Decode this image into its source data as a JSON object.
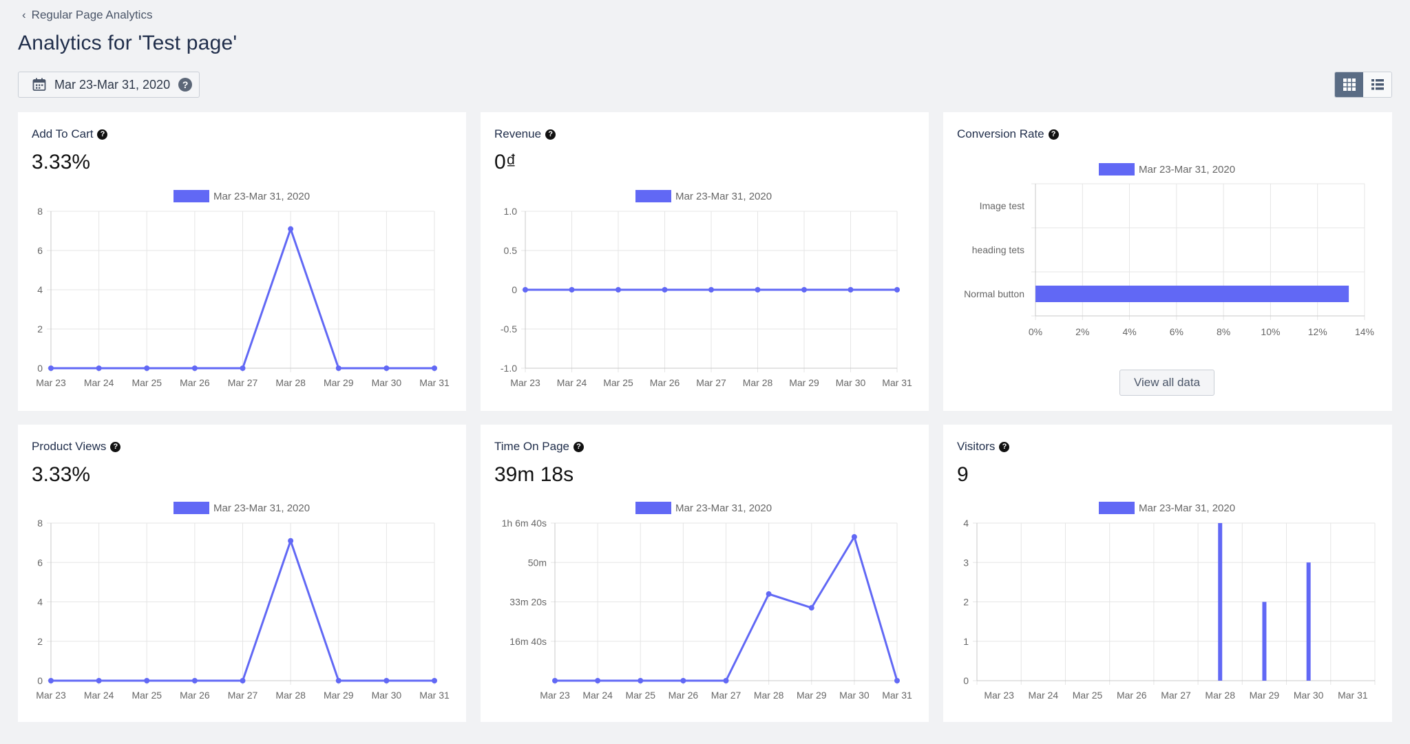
{
  "breadcrumb": {
    "label": "Regular Page Analytics"
  },
  "page": {
    "title": "Analytics for 'Test page'"
  },
  "date_range": {
    "label": "Mar 23-Mar 31, 2020",
    "help": "?"
  },
  "view_toggle": {
    "active": "grid"
  },
  "colors": {
    "series": "#6168f5",
    "background": "#f1f2f4"
  },
  "legend_label": "Mar 23-Mar 31, 2020",
  "help_glyph": "?",
  "cards": {
    "add_to_cart": {
      "title": "Add To Cart",
      "value": "3.33%"
    },
    "revenue": {
      "title": "Revenue",
      "value": "0₫"
    },
    "conversion_rate": {
      "title": "Conversion Rate",
      "view_all": "View all data"
    },
    "product_views": {
      "title": "Product Views",
      "value": "3.33%"
    },
    "time_on_page": {
      "title": "Time On Page",
      "value": "39m 18s"
    },
    "visitors": {
      "title": "Visitors",
      "value": "9"
    }
  },
  "chart_data": [
    {
      "id": "add_to_cart",
      "type": "line",
      "categories": [
        "Mar 23",
        "Mar 24",
        "Mar 25",
        "Mar 26",
        "Mar 27",
        "Mar 28",
        "Mar 29",
        "Mar 30",
        "Mar 31"
      ],
      "series": [
        {
          "name": "Mar 23-Mar 31, 2020",
          "values": [
            0,
            0,
            0,
            0,
            0,
            7.1,
            0,
            0,
            0
          ]
        }
      ],
      "ylim": [
        0,
        8
      ],
      "yticks": [
        0,
        2,
        4,
        6,
        8
      ],
      "ytick_labels": [
        "0",
        "2",
        "4",
        "6",
        "8"
      ],
      "legend": "top-center",
      "grid": true
    },
    {
      "id": "revenue",
      "type": "line",
      "categories": [
        "Mar 23",
        "Mar 24",
        "Mar 25",
        "Mar 26",
        "Mar 27",
        "Mar 28",
        "Mar 29",
        "Mar 30",
        "Mar 31"
      ],
      "series": [
        {
          "name": "Mar 23-Mar 31, 2020",
          "values": [
            0,
            0,
            0,
            0,
            0,
            0,
            0,
            0,
            0
          ]
        }
      ],
      "ylim": [
        -1,
        1
      ],
      "yticks": [
        -1,
        -0.5,
        0,
        0.5,
        1
      ],
      "ytick_labels": [
        "-1.0",
        "-0.5",
        "0",
        "0.5",
        "1.0"
      ],
      "legend": "top-center",
      "grid": true
    },
    {
      "id": "conversion_rate",
      "type": "bar",
      "orientation": "horizontal",
      "categories": [
        "Image test",
        "heading tets",
        "Normal button"
      ],
      "series": [
        {
          "name": "Mar 23-Mar 31, 2020",
          "values": [
            0,
            0,
            13.33
          ]
        }
      ],
      "xlim": [
        0,
        14
      ],
      "xticks": [
        0,
        2,
        4,
        6,
        8,
        10,
        12,
        14
      ],
      "xtick_labels": [
        "0%",
        "2%",
        "4%",
        "6%",
        "8%",
        "10%",
        "12%",
        "14%"
      ],
      "legend": "top-center",
      "grid": true
    },
    {
      "id": "product_views",
      "type": "line",
      "categories": [
        "Mar 23",
        "Mar 24",
        "Mar 25",
        "Mar 26",
        "Mar 27",
        "Mar 28",
        "Mar 29",
        "Mar 30",
        "Mar 31"
      ],
      "series": [
        {
          "name": "Mar 23-Mar 31, 2020",
          "values": [
            0,
            0,
            0,
            0,
            0,
            7.1,
            0,
            0,
            0
          ]
        }
      ],
      "ylim": [
        0,
        8
      ],
      "yticks": [
        0,
        2,
        4,
        6,
        8
      ],
      "ytick_labels": [
        "0",
        "2",
        "4",
        "6",
        "8"
      ],
      "legend": "top-center",
      "grid": true
    },
    {
      "id": "time_on_page",
      "type": "line",
      "y_unit": "seconds",
      "categories": [
        "Mar 23",
        "Mar 24",
        "Mar 25",
        "Mar 26",
        "Mar 27",
        "Mar 28",
        "Mar 29",
        "Mar 30",
        "Mar 31"
      ],
      "series": [
        {
          "name": "Mar 23-Mar 31, 2020",
          "values": [
            0,
            0,
            0,
            0,
            0,
            2200,
            1850,
            3650,
            0
          ]
        }
      ],
      "ylim": [
        0,
        4000
      ],
      "yticks": [
        1000,
        2000,
        3000,
        4000
      ],
      "ytick_labels": [
        "16m 40s",
        "33m 20s",
        "50m",
        "1h 6m 40s"
      ],
      "legend": "top-center",
      "grid": true
    },
    {
      "id": "visitors",
      "type": "bar",
      "categories": [
        "Mar 23",
        "Mar 24",
        "Mar 25",
        "Mar 26",
        "Mar 27",
        "Mar 28",
        "Mar 29",
        "Mar 30",
        "Mar 31"
      ],
      "series": [
        {
          "name": "Mar 23-Mar 31, 2020",
          "values": [
            0,
            0,
            0,
            0,
            0,
            4,
            2,
            3,
            0
          ]
        }
      ],
      "ylim": [
        0,
        4
      ],
      "yticks": [
        0,
        1,
        2,
        3,
        4
      ],
      "ytick_labels": [
        "0",
        "1",
        "2",
        "3",
        "4"
      ],
      "legend": "top-center",
      "grid": true
    }
  ]
}
